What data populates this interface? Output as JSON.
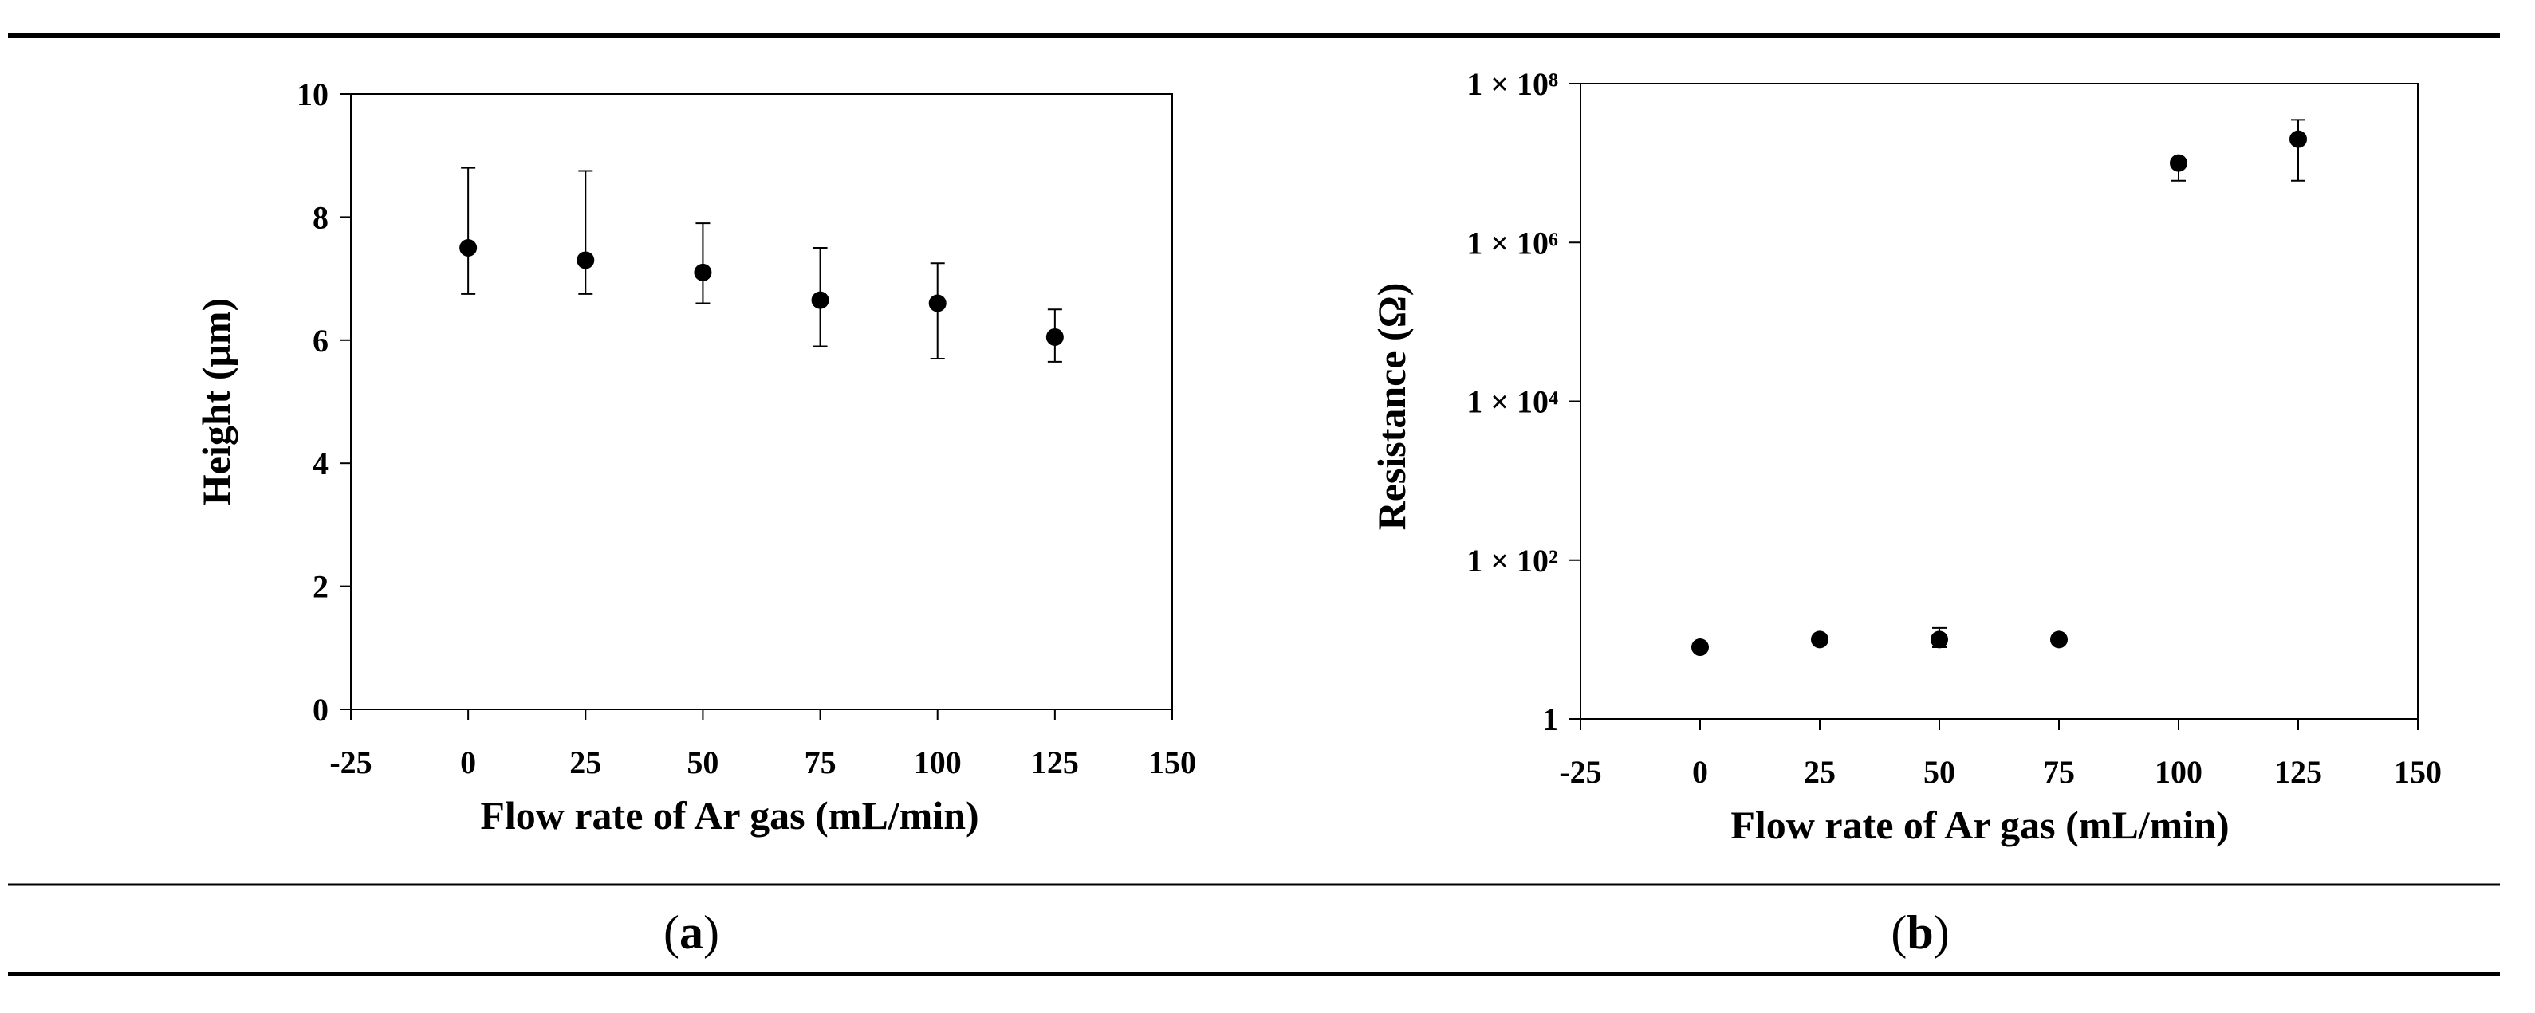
{
  "panels": [
    {
      "label_open": "(",
      "label_letter": "a",
      "label_close": ")"
    },
    {
      "label_open": "(",
      "label_letter": "b",
      "label_close": ")"
    }
  ],
  "chart_data": [
    {
      "type": "scatter",
      "title": "",
      "xlabel": "Flow rate of Ar gas (mL/min)",
      "ylabel": "Height (μm)",
      "xlim": [
        -25,
        150
      ],
      "ylim": [
        0,
        10
      ],
      "xticks": [
        -25,
        0,
        25,
        50,
        75,
        100,
        125,
        150
      ],
      "yticks": [
        0,
        2,
        4,
        6,
        8,
        10
      ],
      "xtick_labels": [
        "-25",
        "0",
        "25",
        "50",
        "75",
        "100",
        "125",
        "150"
      ],
      "ytick_labels": [
        "0",
        "2",
        "4",
        "6",
        "8",
        "10"
      ],
      "grid": false,
      "series": [
        {
          "x": [
            0,
            25,
            50,
            75,
            100,
            125
          ],
          "y": [
            7.5,
            7.3,
            7.1,
            6.65,
            6.6,
            6.05
          ],
          "err_low": [
            6.75,
            6.75,
            6.6,
            5.9,
            5.7,
            5.65
          ],
          "err_high": [
            8.8,
            8.75,
            7.9,
            7.5,
            7.25,
            6.5
          ]
        }
      ],
      "color": "#000000"
    },
    {
      "type": "scatter",
      "title": "",
      "xlabel": "Flow rate of Ar gas (mL/min)",
      "ylabel": "Resistance (Ω)",
      "xlim": [
        -25,
        150
      ],
      "yscale": "log",
      "ylim": [
        1,
        100000000
      ],
      "xticks": [
        -25,
        0,
        25,
        50,
        75,
        100,
        125,
        150
      ],
      "yticks": [
        1,
        100,
        10000,
        1000000,
        100000000
      ],
      "xtick_labels": [
        "-25",
        "0",
        "25",
        "50",
        "75",
        "100",
        "125",
        "150"
      ],
      "ytick_labels": [
        "1",
        "1 × 10²",
        "1 × 10⁴",
        "1 × 10⁶",
        "1 × 10⁸"
      ],
      "grid": false,
      "series": [
        {
          "x": [
            0,
            25,
            50,
            75,
            100,
            125
          ],
          "y": [
            8,
            10,
            10,
            10,
            10000000,
            20000000
          ],
          "err_low": [
            8,
            10,
            8,
            10,
            6000000,
            6000000
          ],
          "err_high": [
            8,
            10,
            14,
            10,
            10000000,
            35000000
          ]
        }
      ],
      "color": "#000000"
    }
  ]
}
